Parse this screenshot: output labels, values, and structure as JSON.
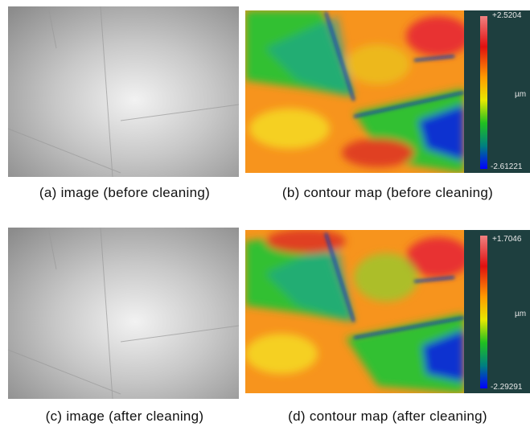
{
  "panels": [
    {
      "caption": "(a) image (before cleaning)"
    },
    {
      "caption": "(b) contour map (before cleaning)",
      "colorbar": {
        "max": "+2.5204",
        "unit": "µm",
        "min": "-2.61221"
      }
    },
    {
      "caption": "(c) image (after cleaning)"
    },
    {
      "caption": "(d) contour map (after cleaning)",
      "colorbar": {
        "max": "+1.7046",
        "unit": "µm",
        "min": "-2.29291"
      }
    }
  ]
}
